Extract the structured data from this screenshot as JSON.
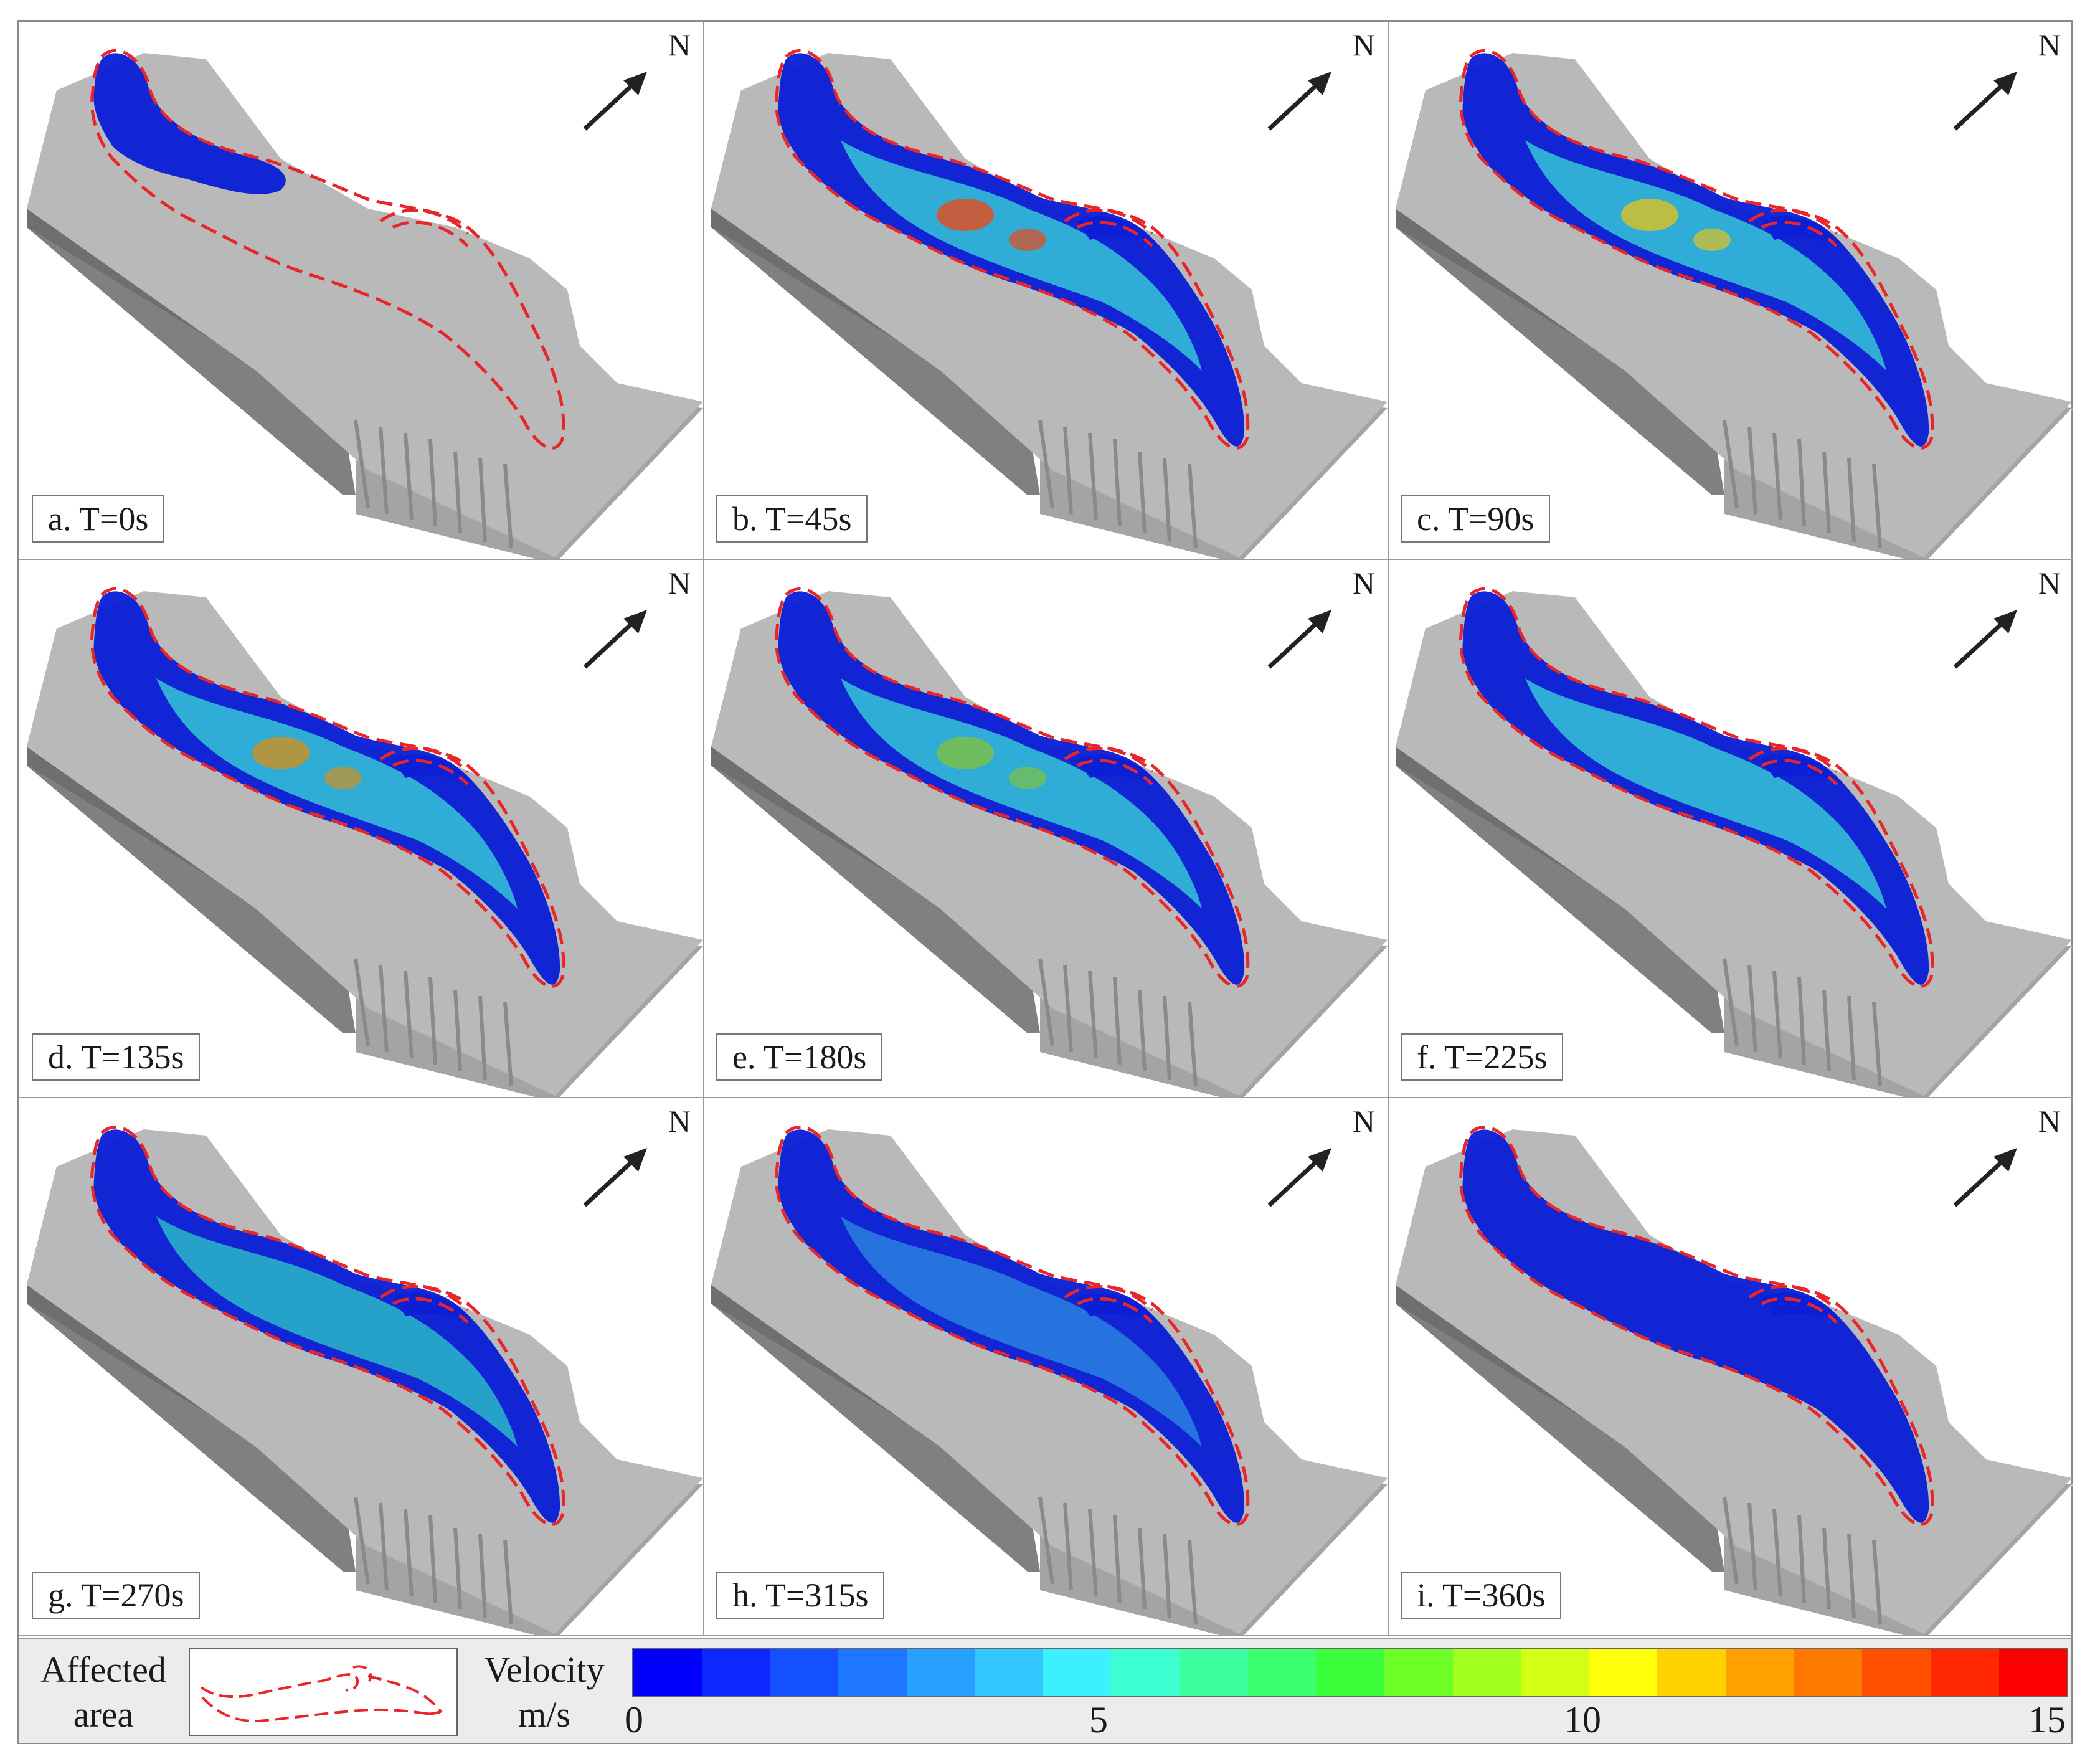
{
  "panels": [
    {
      "label": "a. T=0s"
    },
    {
      "label": "b. T=45s"
    },
    {
      "label": "c. T=90s"
    },
    {
      "label": "d. T=135s"
    },
    {
      "label": "e. T=180s"
    },
    {
      "label": "f. T=225s"
    },
    {
      "label": "g. T=270s"
    },
    {
      "label": "h. T=315s"
    },
    {
      "label": "i. T=360s"
    }
  ],
  "north_label": "N",
  "legend": {
    "affected_line1": "Affected",
    "affected_line2": "area",
    "velocity_line1": "Velocity",
    "velocity_line2": "m/s",
    "ticks": [
      "0",
      "5",
      "10",
      "15"
    ],
    "colors": {
      "terrain": "#b9b9b9",
      "terrain_side": "#6f6f6f",
      "outline": "#e8262a",
      "slow": "#0a1fd6",
      "medium": "#35c6d6",
      "fast": "#e84a1a"
    },
    "colorbar": [
      "#0000ff",
      "#0a28ff",
      "#1450ff",
      "#1e78ff",
      "#28a0ff",
      "#32c8ff",
      "#3cf0ff",
      "#3cffd2",
      "#3cffa0",
      "#3cff6e",
      "#3cff3c",
      "#6eff28",
      "#a0ff1e",
      "#d2ff14",
      "#ffff0a",
      "#ffd200",
      "#ffa000",
      "#ff7800",
      "#ff5000",
      "#ff2800",
      "#ff0000"
    ]
  }
}
